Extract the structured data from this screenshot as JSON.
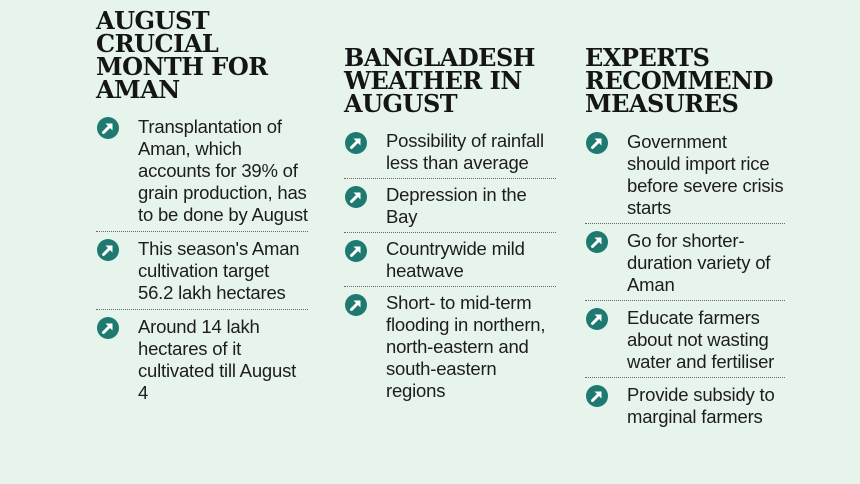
{
  "colors": {
    "background": "#e6f4ec",
    "bullet": "#1e7a70",
    "text": "#1d1d1d"
  },
  "columns": [
    {
      "heading": "AUGUST CRUCIAL MONTH FOR AMAN",
      "items": [
        "Transplantation of Aman, which accounts for 39% of grain production, has to be done by August",
        "This season's Aman cultivation target 56.2 lakh hectares",
        "Around 14 lakh hectares of it cultivated till August 4"
      ]
    },
    {
      "heading": "BANGLADESH WEATHER IN AUGUST",
      "items": [
        "Possibility of rainfall less than average",
        "Depression in the Bay",
        "Countrywide mild heatwave",
        "Short- to mid-term flooding in northern, north-eastern and south-eastern regions"
      ]
    },
    {
      "heading": "EXPERTS RECOMMEND MEASURES",
      "items": [
        "Government should import rice before severe crisis starts",
        "Go for shorter-duration variety of Aman",
        "Educate farmers about not wasting water and fertiliser",
        "Provide subsidy to marginal farmers"
      ]
    }
  ]
}
